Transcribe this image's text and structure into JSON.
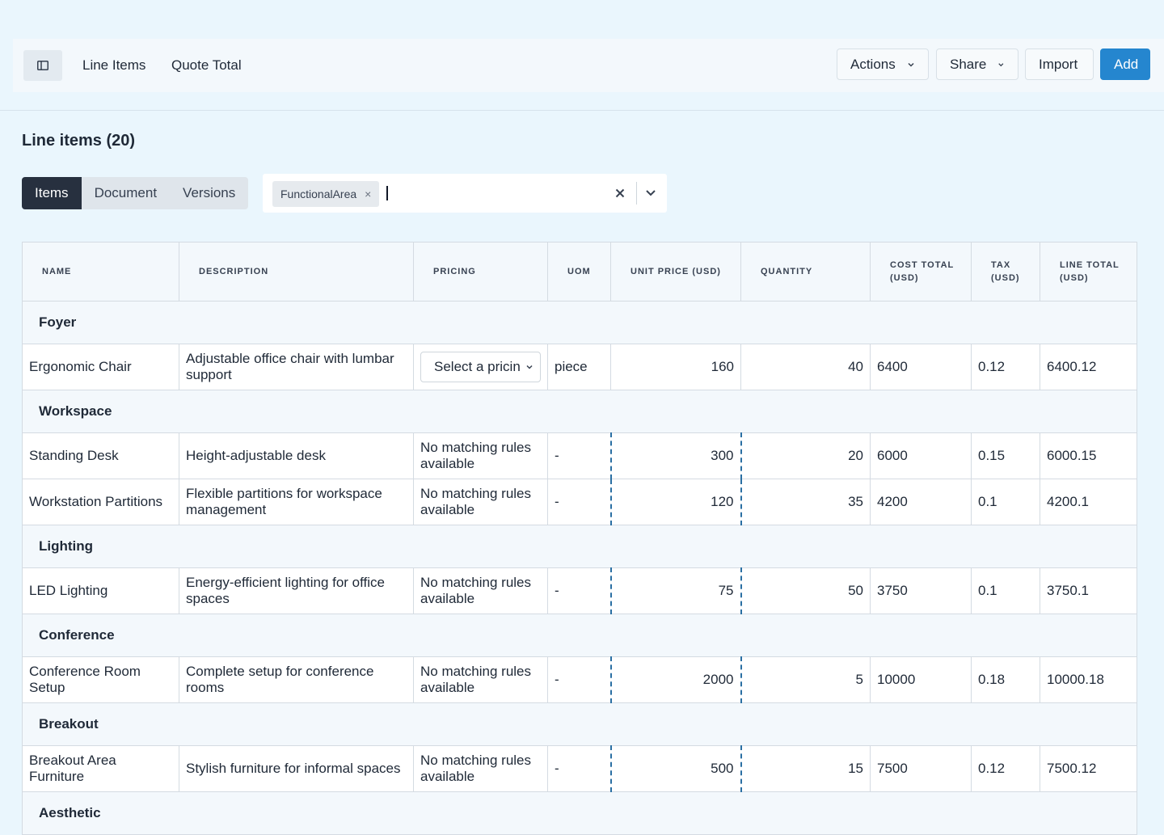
{
  "topbar": {
    "nav": [
      "Line Items",
      "Quote Total"
    ],
    "actions_label": "Actions",
    "share_label": "Share",
    "import_label": "Import",
    "add_label": "Add",
    "accent": "#2586cf"
  },
  "page": {
    "title": "Line items (20)",
    "tabs": [
      {
        "label": "Items",
        "active": true
      },
      {
        "label": "Document",
        "active": false
      },
      {
        "label": "Versions",
        "active": false
      }
    ],
    "filter": {
      "chip": "FunctionalArea",
      "value": ""
    }
  },
  "table": {
    "headers": [
      "NAME",
      "DESCRIPTION",
      "PRICING",
      "UOM",
      "UNIT PRICE (USD)",
      "QUANTITY",
      "COST TOTAL (USD)",
      "TAX (USD)",
      "LINE TOTAL (USD)"
    ],
    "groups": [
      {
        "name": "Foyer",
        "rows": [
          {
            "name": "Ergonomic Chair",
            "description": "Adjustable office chair with lumbar support",
            "pricing": "Select a pricing",
            "pricing_is_select": true,
            "uom": "piece",
            "unit_price": "160",
            "quantity": "40",
            "cost_total": "6400",
            "tax": "0.12",
            "line_total": "6400.12"
          }
        ]
      },
      {
        "name": "Workspace",
        "rows": [
          {
            "name": "Standing Desk",
            "description": "Height-adjustable desk",
            "pricing": "No matching rules available",
            "uom": "-",
            "unit_price": "300",
            "quantity": "20",
            "cost_total": "6000",
            "tax": "0.15",
            "line_total": "6000.15"
          },
          {
            "name": "Workstation Partitions",
            "description": "Flexible partitions for workspace management",
            "pricing": "No matching rules available",
            "uom": "-",
            "unit_price": "120",
            "quantity": "35",
            "cost_total": "4200",
            "tax": "0.1",
            "line_total": "4200.1"
          }
        ]
      },
      {
        "name": "Lighting",
        "rows": [
          {
            "name": "LED Lighting",
            "description": "Energy-efficient lighting for office spaces",
            "pricing": "No matching rules available",
            "uom": "-",
            "unit_price": "75",
            "quantity": "50",
            "cost_total": "3750",
            "tax": "0.1",
            "line_total": "3750.1"
          }
        ]
      },
      {
        "name": "Conference",
        "rows": [
          {
            "name": "Conference Room Setup",
            "description": "Complete setup for conference rooms",
            "pricing": "No matching rules available",
            "uom": "-",
            "unit_price": "2000",
            "quantity": "5",
            "cost_total": "10000",
            "tax": "0.18",
            "line_total": "10000.18"
          }
        ]
      },
      {
        "name": "Breakout",
        "rows": [
          {
            "name": "Breakout Area Furniture",
            "description": "Stylish furniture for informal spaces",
            "pricing": "No matching rules available",
            "uom": "-",
            "unit_price": "500",
            "quantity": "15",
            "cost_total": "7500",
            "tax": "0.12",
            "line_total": "7500.12"
          }
        ]
      },
      {
        "name": "Aesthetic",
        "rows": []
      }
    ]
  }
}
